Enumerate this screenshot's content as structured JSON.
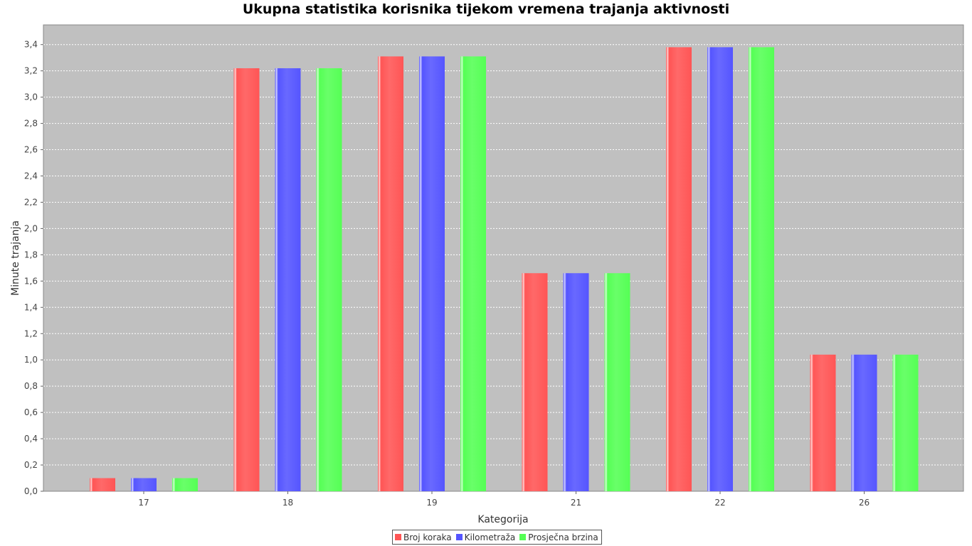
{
  "chart_data": {
    "type": "bar",
    "title": "Ukupna statistika korisnika tijekom vremena trajanja aktivnosti",
    "xlabel": "Kategorija",
    "ylabel": "Minute trajanja",
    "categories": [
      "17",
      "18",
      "19",
      "21",
      "22",
      "26"
    ],
    "series": [
      {
        "name": "Broj koraka",
        "color": "#ff5555",
        "values": [
          0.1,
          3.22,
          3.31,
          1.66,
          3.38,
          1.04
        ]
      },
      {
        "name": "Kilometraža",
        "color": "#5555ff",
        "values": [
          0.1,
          3.22,
          3.31,
          1.66,
          3.38,
          1.04
        ]
      },
      {
        "name": "Prosječna brzina",
        "color": "#55ff55",
        "values": [
          0.1,
          3.22,
          3.31,
          1.66,
          3.38,
          1.04
        ]
      }
    ],
    "ylim": [
      0,
      3.55
    ],
    "yticks": [
      "0,0",
      "0,2",
      "0,4",
      "0,6",
      "0,8",
      "1,0",
      "1,2",
      "1,4",
      "1,6",
      "1,8",
      "2,0",
      "2,2",
      "2,4",
      "2,6",
      "2,8",
      "3,0",
      "3,2",
      "3,4"
    ],
    "grid": true,
    "legend": "bottom",
    "plot_background": "#c0c0c0"
  }
}
